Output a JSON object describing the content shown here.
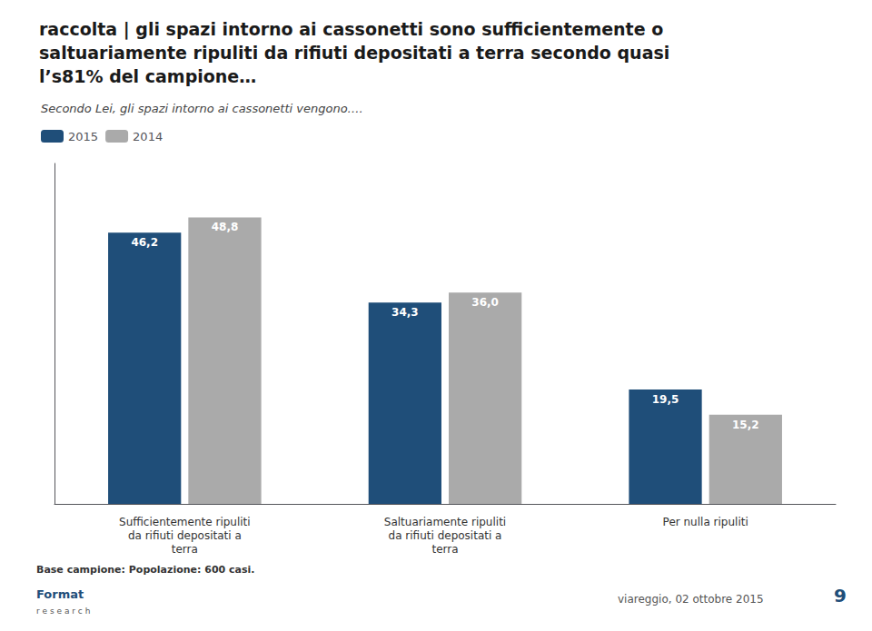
{
  "chart_data": {
    "type": "bar",
    "title": "raccolta | gli spazi intorno ai cassonetti sono sufficientemente o\nsaltuariamente ripuliti da rifiuti depositati a terra secondo quasi\nl’s81% del campione…",
    "subtitle": "Secondo Lei, gli spazi intorno ai cassonetti vengono….",
    "categories": [
      "Sufficientemente ripuliti\nda rifiuti depositati a\nterra",
      "Saltuariamente ripuliti\nda rifiuti depositati a\nterra",
      "Per nulla ripuliti"
    ],
    "series": [
      {
        "name": "2015",
        "color": "#1F4E79",
        "values": [
          46.2,
          34.3,
          19.5
        ],
        "value_labels": [
          "46,2",
          "34,3",
          "19,5"
        ]
      },
      {
        "name": "2014",
        "color": "#AAAAAA",
        "values": [
          48.8,
          36.0,
          15.2
        ],
        "value_labels": [
          "48,8",
          "36,0",
          "15,2"
        ]
      }
    ],
    "ylim": [
      0,
      58
    ],
    "grid": false,
    "legend": "top-left",
    "data_labels": true,
    "tick_labels": "x",
    "annotations": [
      "Base campione: Popolazione: 600 casi.",
      "Format",
      "r e s e a r c h",
      "viareggio, 02 ottobre 2015",
      "9"
    ]
  }
}
